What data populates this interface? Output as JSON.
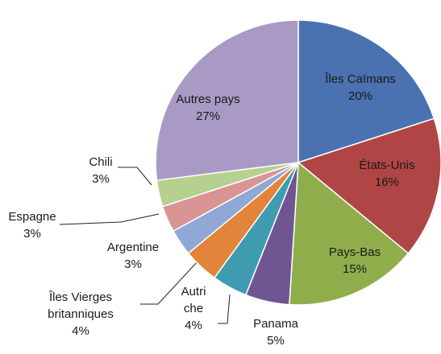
{
  "chart_data": {
    "type": "pie",
    "categories": [
      "Îles Caïmans",
      "États-Unis",
      "Pays-Bas",
      "Panama",
      "Autri\nche",
      "Îles Vierges\nbritanniques",
      "Argentine",
      "Espagne",
      "Chili",
      "Autres pays"
    ],
    "values": [
      20,
      16,
      15,
      5,
      4,
      4,
      3,
      3,
      3,
      27
    ],
    "value_labels": [
      "20%",
      "16%",
      "15%",
      "5%",
      "4%",
      "4%",
      "3%",
      "3%",
      "3%",
      "27%"
    ],
    "colors": [
      "#4a72b0",
      "#b04545",
      "#8fae4b",
      "#6f5592",
      "#3f9cb0",
      "#e2843a",
      "#8fa8d6",
      "#d99593",
      "#b6d08f",
      "#a89ac4"
    ]
  }
}
